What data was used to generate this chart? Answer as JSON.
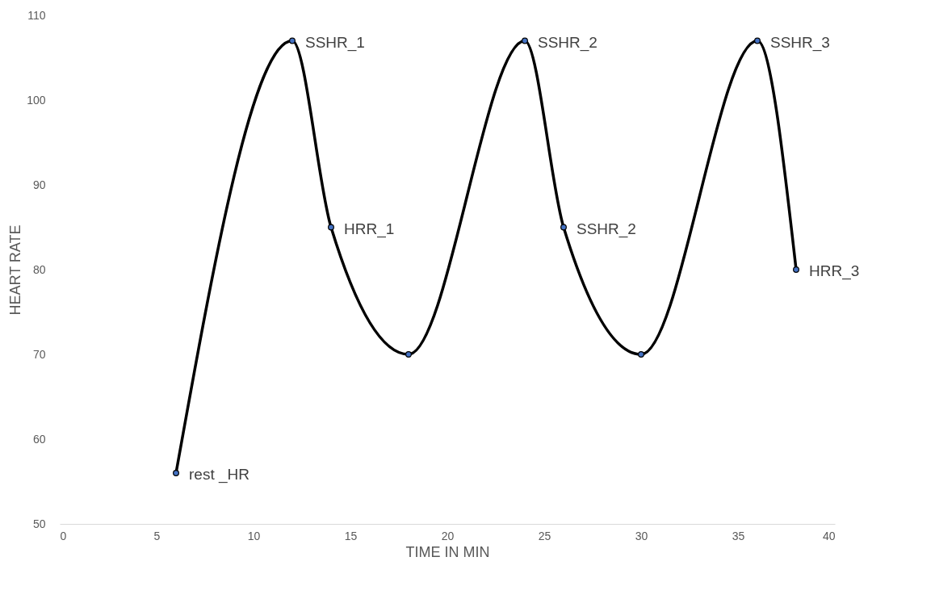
{
  "chart_data": {
    "type": "line",
    "xlabel": "TIME IN MIN",
    "ylabel": "HEART RATE",
    "x": [
      6,
      12,
      14,
      18,
      24,
      26,
      30,
      36,
      38
    ],
    "series": [
      {
        "color": "#000000",
        "values": [
          56,
          107,
          85,
          70,
          107,
          85,
          70,
          107,
          80
        ]
      }
    ],
    "xlim": [
      0,
      40
    ],
    "xticks": [
      0,
      5,
      10,
      15,
      20,
      25,
      30,
      35,
      40
    ],
    "ylim": [
      50,
      110
    ],
    "yticks": [
      50,
      60,
      70,
      80,
      90,
      100,
      110
    ],
    "grid": false,
    "marker": "circle",
    "line_style": "solid",
    "annotations": [
      {
        "text": "rest _HR",
        "x": 6,
        "y": 56
      },
      {
        "text": "SSHR_1",
        "x": 12,
        "y": 107
      },
      {
        "text": "HRR_1",
        "x": 14,
        "y": 85
      },
      {
        "text": "SSHR_2",
        "x": 24,
        "y": 107
      },
      {
        "text": "SSHR_2",
        "x": 26,
        "y": 85
      },
      {
        "text": "SSHR_3",
        "x": 36,
        "y": 107
      },
      {
        "text": "HRR_3",
        "x": 38,
        "y": 80
      }
    ]
  }
}
